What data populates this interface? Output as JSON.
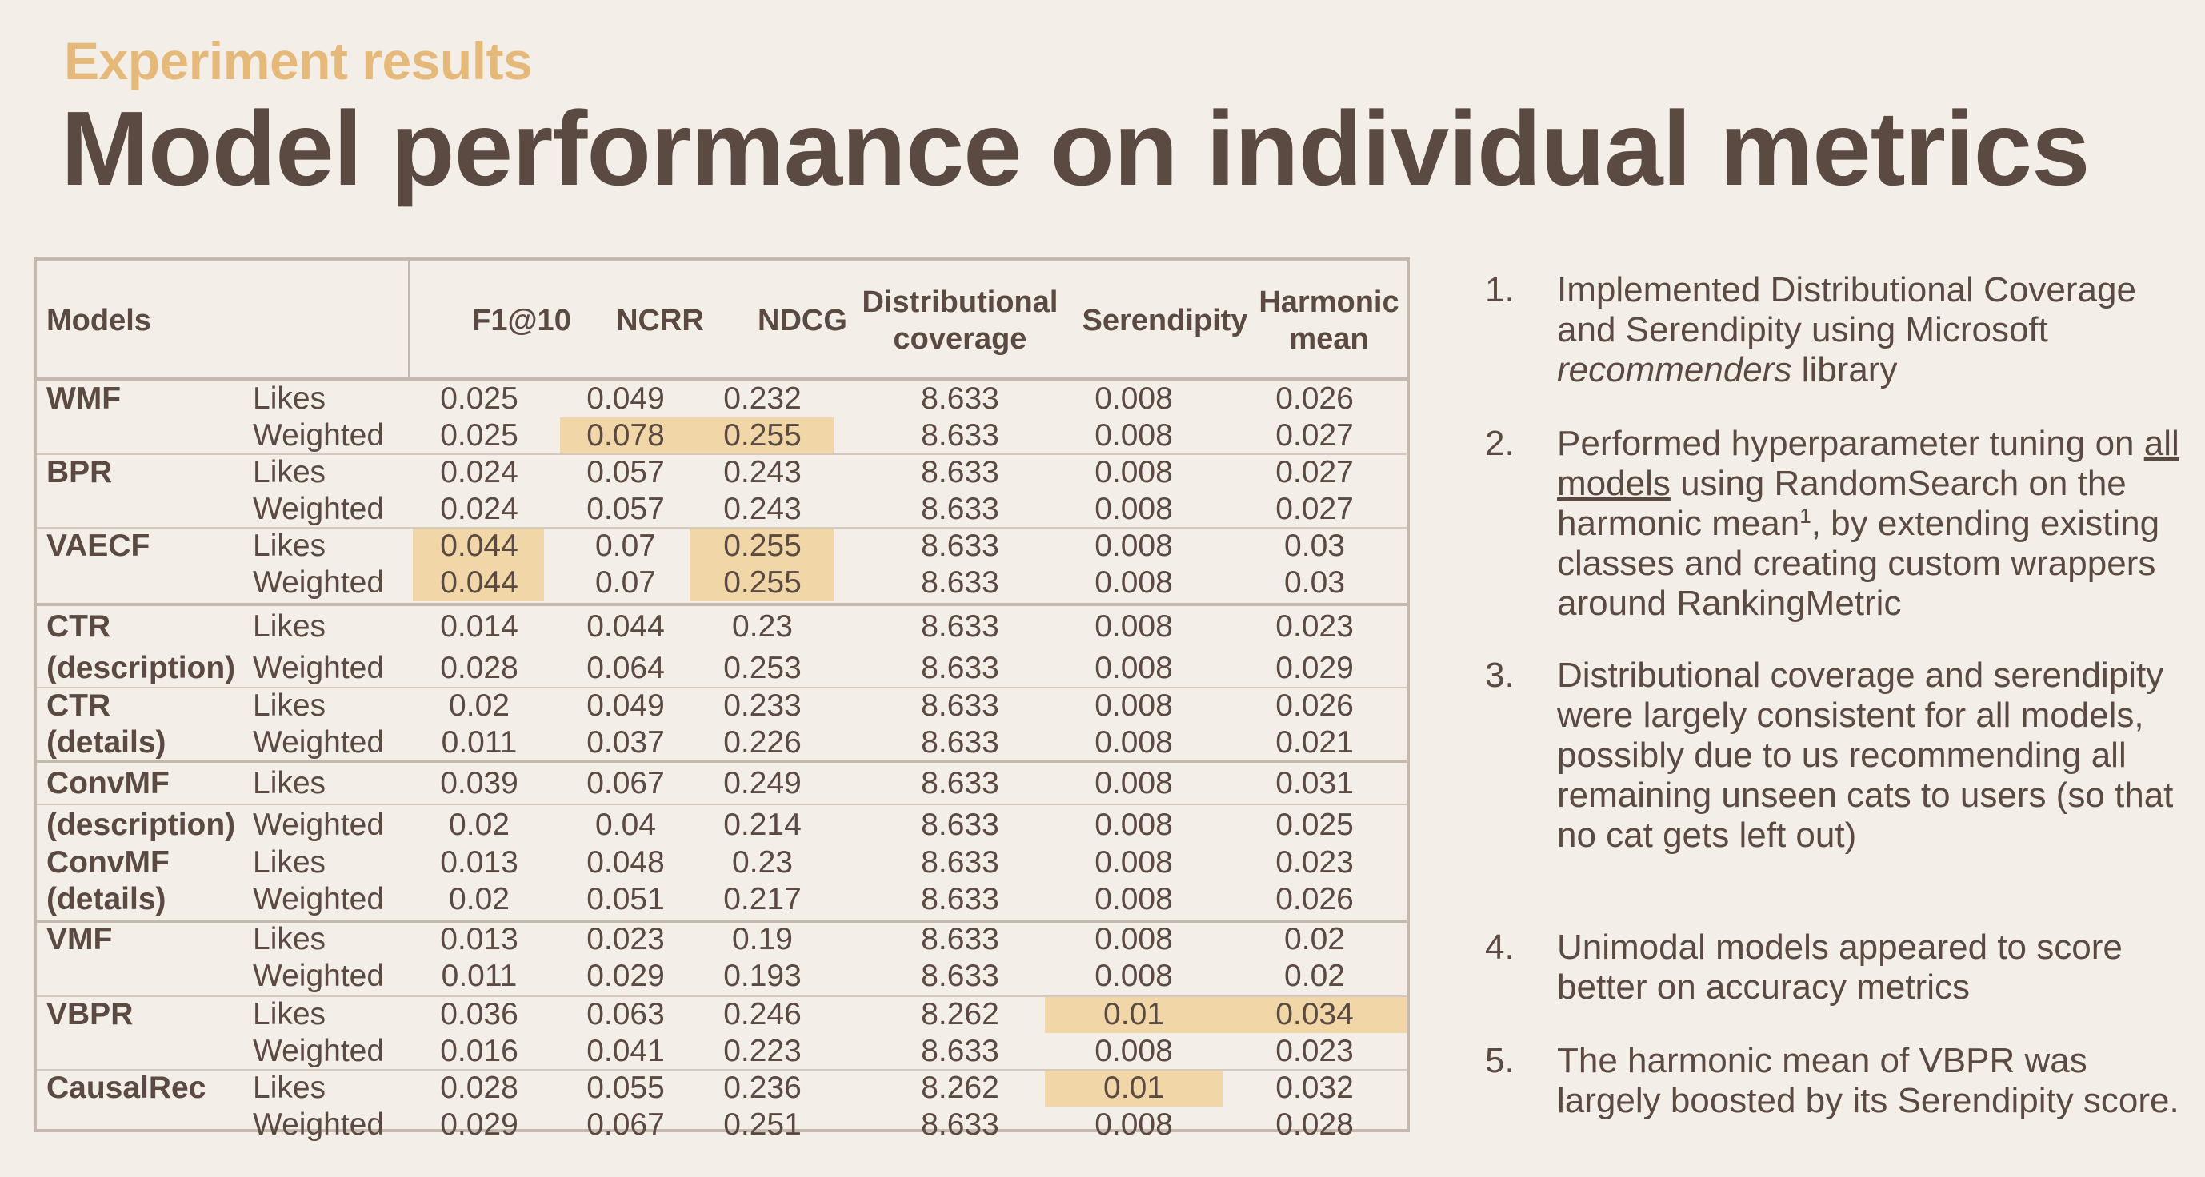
{
  "header": {
    "subtitle": "Experiment results",
    "title": "Model performance on individual metrics"
  },
  "table": {
    "columns": {
      "models": "Models",
      "f1": "F1@10",
      "ncrr": "NCRR",
      "ndcg": "NDCG",
      "dist": "Distributional coverage",
      "seren": "Serendipity",
      "harm": "Harmonic mean"
    },
    "rows": [
      {
        "model": "WMF",
        "variant": "Likes",
        "f1": "0.025",
        "ncrr": "0.049",
        "ndcg": "0.232",
        "dist": "8.633",
        "seren": "0.008",
        "harm": "0.026"
      },
      {
        "model": "",
        "variant": "Weighted",
        "f1": "0.025",
        "ncrr": "0.078",
        "ndcg": "0.255",
        "dist": "8.633",
        "seren": "0.008",
        "harm": "0.027"
      },
      {
        "model": "BPR",
        "variant": "Likes",
        "f1": "0.024",
        "ncrr": "0.057",
        "ndcg": "0.243",
        "dist": "8.633",
        "seren": "0.008",
        "harm": "0.027"
      },
      {
        "model": "",
        "variant": "Weighted",
        "f1": "0.024",
        "ncrr": "0.057",
        "ndcg": "0.243",
        "dist": "8.633",
        "seren": "0.008",
        "harm": "0.027"
      },
      {
        "model": "VAECF",
        "variant": "Likes",
        "f1": "0.044",
        "ncrr": "0.07",
        "ndcg": "0.255",
        "dist": "8.633",
        "seren": "0.008",
        "harm": "0.03"
      },
      {
        "model": "",
        "variant": "Weighted",
        "f1": "0.044",
        "ncrr": "0.07",
        "ndcg": "0.255",
        "dist": "8.633",
        "seren": "0.008",
        "harm": "0.03"
      },
      {
        "model": "CTR",
        "variant": "Likes",
        "f1": "0.014",
        "ncrr": "0.044",
        "ndcg": "0.23",
        "dist": "8.633",
        "seren": "0.008",
        "harm": "0.023"
      },
      {
        "model": "(description)",
        "variant": "Weighted",
        "f1": "0.028",
        "ncrr": "0.064",
        "ndcg": "0.253",
        "dist": "8.633",
        "seren": "0.008",
        "harm": "0.029"
      },
      {
        "model": "CTR",
        "variant": "Likes",
        "f1": "0.02",
        "ncrr": "0.049",
        "ndcg": "0.233",
        "dist": "8.633",
        "seren": "0.008",
        "harm": "0.026"
      },
      {
        "model": "(details)",
        "variant": "Weighted",
        "f1": "0.011",
        "ncrr": "0.037",
        "ndcg": "0.226",
        "dist": "8.633",
        "seren": "0.008",
        "harm": "0.021"
      },
      {
        "model": "ConvMF",
        "variant": "Likes",
        "f1": "0.039",
        "ncrr": "0.067",
        "ndcg": "0.249",
        "dist": "8.633",
        "seren": "0.008",
        "harm": "0.031"
      },
      {
        "model": "(description)",
        "variant": "Weighted",
        "f1": "0.02",
        "ncrr": "0.04",
        "ndcg": "0.214",
        "dist": "8.633",
        "seren": "0.008",
        "harm": "0.025"
      },
      {
        "model": "ConvMF",
        "variant": "Likes",
        "f1": "0.013",
        "ncrr": "0.048",
        "ndcg": "0.23",
        "dist": "8.633",
        "seren": "0.008",
        "harm": "0.023"
      },
      {
        "model": "(details)",
        "variant": "Weighted",
        "f1": "0.02",
        "ncrr": "0.051",
        "ndcg": "0.217",
        "dist": "8.633",
        "seren": "0.008",
        "harm": "0.026"
      },
      {
        "model": "VMF",
        "variant": "Likes",
        "f1": "0.013",
        "ncrr": "0.023",
        "ndcg": "0.19",
        "dist": "8.633",
        "seren": "0.008",
        "harm": "0.02"
      },
      {
        "model": "",
        "variant": "Weighted",
        "f1": "0.011",
        "ncrr": "0.029",
        "ndcg": "0.193",
        "dist": "8.633",
        "seren": "0.008",
        "harm": "0.02"
      },
      {
        "model": "VBPR",
        "variant": "Likes",
        "f1": "0.036",
        "ncrr": "0.063",
        "ndcg": "0.246",
        "dist": "8.262",
        "seren": "0.01",
        "harm": "0.034"
      },
      {
        "model": "",
        "variant": "Weighted",
        "f1": "0.016",
        "ncrr": "0.041",
        "ndcg": "0.223",
        "dist": "8.633",
        "seren": "0.008",
        "harm": "0.023"
      },
      {
        "model": "CausalRec",
        "variant": "Likes",
        "f1": "0.028",
        "ncrr": "0.055",
        "ndcg": "0.236",
        "dist": "8.262",
        "seren": "0.01",
        "harm": "0.032"
      },
      {
        "model": "",
        "variant": "Weighted",
        "f1": "0.029",
        "ncrr": "0.067",
        "ndcg": "0.251",
        "dist": "8.633",
        "seren": "0.008",
        "harm": "0.028"
      }
    ],
    "highlight_color": "#f1d6a7"
  },
  "notes": [
    {
      "num": "1.",
      "a": "Implemented Distributional Coverage and Serendipity using Microsoft ",
      "em": "recommenders",
      "b": " library"
    },
    {
      "num": "2.",
      "a": "Performed hyperparameter tuning on ",
      "u": "all models",
      "b": " using RandomSearch on the harmonic mean",
      "sup": "1",
      "c": ",  by extending existing classes and creating custom wrappers around RankingMetric"
    },
    {
      "num": "3.",
      "a": "Distributional coverage and serendipity were largely consistent for all models, possibly due to us recommending all remaining unseen cats to users (so that no cat gets left out)"
    },
    {
      "num": "4.",
      "a": "Unimodal models appeared to score better on accuracy metrics"
    },
    {
      "num": "5.",
      "a": "The harmonic mean of VBPR was largely boosted by its Serendipity score."
    }
  ]
}
